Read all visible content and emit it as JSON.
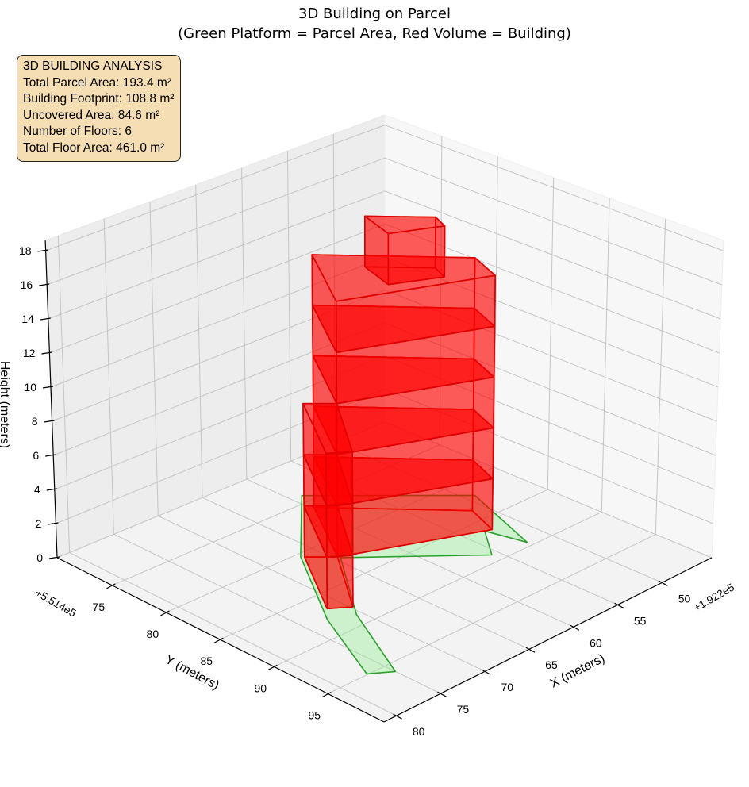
{
  "title": {
    "line1": "3D Building on Parcel",
    "line2": "(Green Platform = Parcel Area, Red Volume = Building)"
  },
  "info_box": {
    "lines": [
      "3D BUILDING ANALYSIS",
      "Total Parcel Area: 193.4 m²",
      "Building Footprint: 108.8 m²",
      "Uncovered Area: 84.6 m²",
      "Number of Floors: 6",
      "Total Floor Area: 461.0 m²"
    ]
  },
  "chart_data": {
    "type": "3d-polygon",
    "title": "3D Building on Parcel (Green Platform = Parcel Area, Red Volume = Building)",
    "xlabel": "X (meters)",
    "ylabel": "Y (meters)",
    "zlabel": "Height (meters)",
    "x_offset_text": "+1.922e5",
    "y_offset_text": "+5.514e5",
    "xlim": [
      44.4,
      81.4
    ],
    "ylim": [
      69.9,
      100.2
    ],
    "zlim": [
      0,
      18.6
    ],
    "xticks": [
      50,
      55,
      60,
      65,
      70,
      75,
      80
    ],
    "yticks": [
      75,
      80,
      85,
      90,
      95
    ],
    "zticks": [
      0,
      2,
      4,
      6,
      8,
      10,
      12,
      14,
      16,
      18
    ],
    "grid": true,
    "parcel": {
      "name": "Parcel Area",
      "edge_color": "#2ca02c",
      "fill_color": "#90ee90",
      "z": 0,
      "polygon": [
        [
          58.9,
          74.1
        ],
        [
          66.7,
          80.4
        ],
        [
          72.8,
          87.9
        ],
        [
          76.9,
          94.9
        ],
        [
          75.0,
          96.0
        ],
        [
          70.5,
          88.7
        ],
        [
          64.5,
          82.3
        ],
        [
          55.7,
          89.1
        ],
        [
          53.1,
          86.3
        ],
        [
          52.2,
          89.5
        ],
        [
          49.1,
          82.1
        ]
      ]
    },
    "building": {
      "name": "Building",
      "edge_color": "#e00000",
      "fill_color": "#ff0000",
      "floors": [
        {
          "floor": 1,
          "z": [
            0,
            3
          ],
          "footprints": [
            [
              [
                59.7,
                75.9
              ],
              [
                51.2,
                83.6
              ],
              [
                52.5,
                86.5
              ],
              [
                64.6,
                82.1
              ]
            ],
            [
              [
                64.6,
                82.1
              ],
              [
                66.5,
                80.6
              ],
              [
                71.5,
                86.8
              ],
              [
                69.8,
                87.8
              ]
            ]
          ]
        },
        {
          "floor": 2,
          "z": [
            3,
            6
          ],
          "footprints": [
            [
              [
                59.7,
                75.9
              ],
              [
                51.2,
                83.6
              ],
              [
                52.5,
                86.5
              ],
              [
                64.6,
                82.1
              ]
            ],
            [
              [
                64.6,
                82.1
              ],
              [
                66.5,
                80.6
              ],
              [
                71.5,
                86.8
              ],
              [
                69.8,
                87.8
              ]
            ]
          ]
        },
        {
          "floor": 3,
          "z": [
            6,
            9
          ],
          "footprints": [
            [
              [
                59.7,
                75.9
              ],
              [
                51.2,
                83.6
              ],
              [
                52.5,
                86.5
              ],
              [
                64.6,
                82.1
              ]
            ],
            [
              [
                64.6,
                82.1
              ],
              [
                66.5,
                80.6
              ],
              [
                71.5,
                86.8
              ],
              [
                69.8,
                87.8
              ]
            ]
          ]
        },
        {
          "floor": 4,
          "z": [
            9,
            12
          ],
          "footprints": [
            [
              [
                59.7,
                75.9
              ],
              [
                51.2,
                83.6
              ],
              [
                52.5,
                86.5
              ],
              [
                64.6,
                82.1
              ]
            ]
          ]
        },
        {
          "floor": 5,
          "z": [
            12,
            15
          ],
          "footprints": [
            [
              [
                59.7,
                75.9
              ],
              [
                51.2,
                83.6
              ],
              [
                52.5,
                86.5
              ],
              [
                64.6,
                82.1
              ]
            ]
          ]
        },
        {
          "floor": 6,
          "z": [
            15,
            18
          ],
          "footprints": [
            [
              [
                58.4,
                79.6
              ],
              [
                54.7,
                82.9
              ],
              [
                55.4,
                84.3
              ],
              [
                59.5,
                82.6
              ]
            ]
          ]
        }
      ]
    }
  }
}
